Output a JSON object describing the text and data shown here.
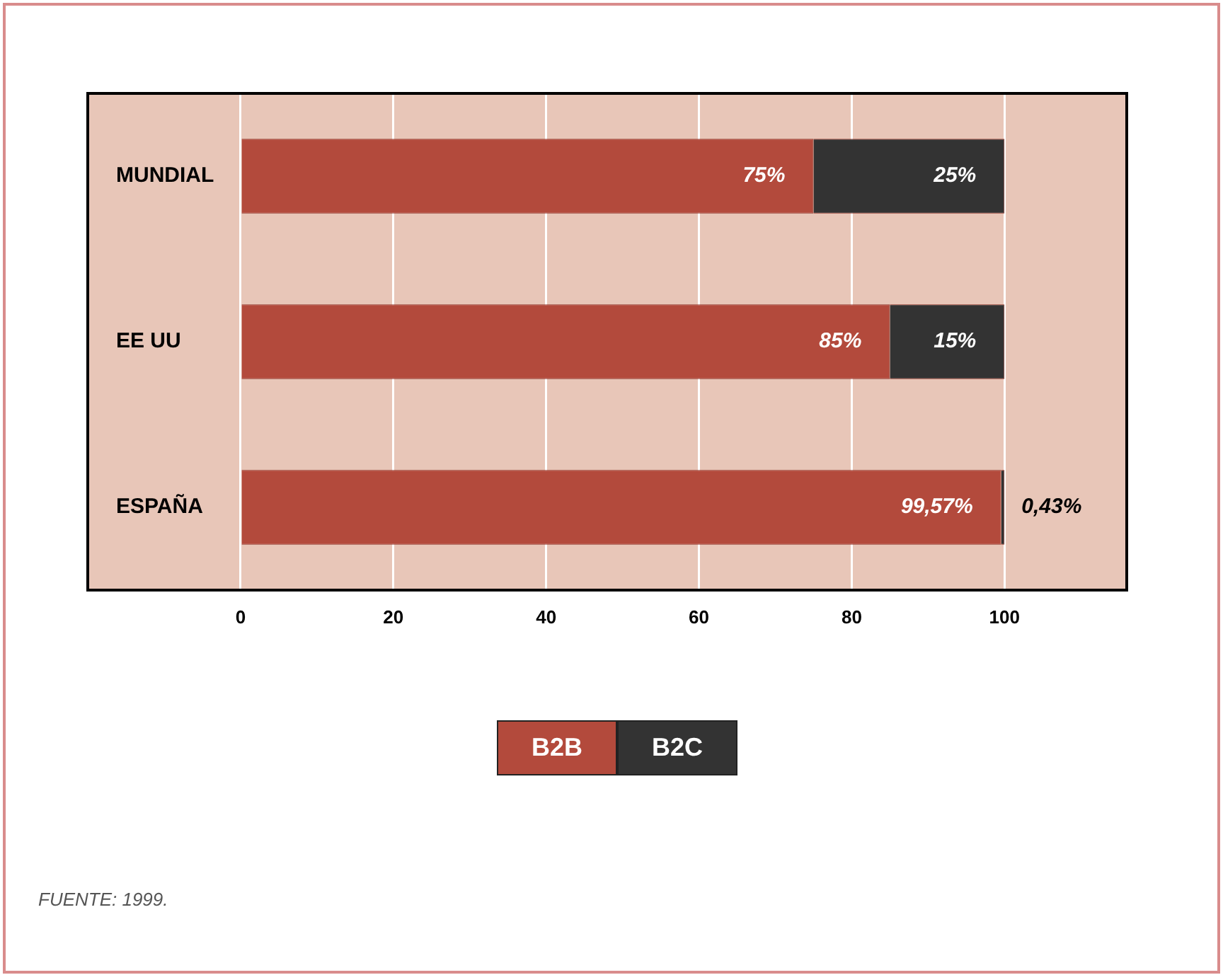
{
  "chart_data": {
    "type": "bar",
    "orientation": "horizontal",
    "stacked": true,
    "categories": [
      "MUNDIAL",
      "EE UU",
      "ESPAÑA"
    ],
    "series": [
      {
        "name": "B2B",
        "color": "#b34a3c",
        "values": [
          75,
          85,
          99.57
        ],
        "value_labels": [
          "75%",
          "85%",
          "99,57%"
        ]
      },
      {
        "name": "B2C",
        "color": "#333333",
        "values": [
          25,
          15,
          0.43
        ],
        "value_labels": [
          "25%",
          "15%",
          "0,43%"
        ]
      }
    ],
    "xlim": [
      -20,
      116
    ],
    "xticks": [
      0,
      20,
      40,
      60,
      80,
      100
    ],
    "grid": "x",
    "legend": "bottom",
    "annotations": [
      "FUENTE: 1999."
    ]
  }
}
